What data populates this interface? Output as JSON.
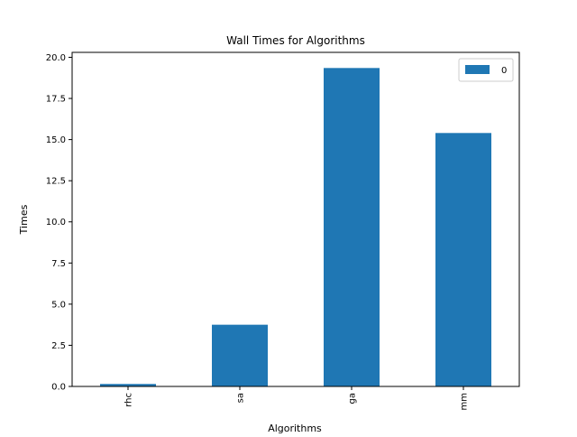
{
  "chart_data": {
    "type": "bar",
    "title": "Wall Times for Algorithms",
    "xlabel": "Algorithms",
    "ylabel": "Times",
    "categories": [
      "rhc",
      "sa",
      "ga",
      "mm"
    ],
    "series": [
      {
        "name": "0",
        "values": [
          0.15,
          3.75,
          19.35,
          15.4
        ]
      }
    ],
    "ylim": [
      0,
      20.3
    ],
    "yticks": [
      0.0,
      2.5,
      5.0,
      7.5,
      10.0,
      12.5,
      15.0,
      17.5,
      20.0
    ],
    "ytick_labels": [
      "0.0",
      "2.5",
      "5.0",
      "7.5",
      "10.0",
      "12.5",
      "15.0",
      "17.5",
      "20.0"
    ],
    "xtick_rotation": "vertical",
    "grid": false,
    "legend_position": "upper right",
    "bar_color": "#1f77b4"
  }
}
